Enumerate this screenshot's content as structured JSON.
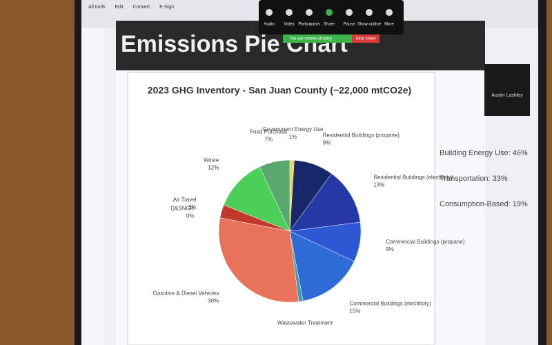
{
  "app": {
    "tabs": [
      "All tools",
      "Edit",
      "Convert",
      "E-Sign"
    ],
    "meeting_controls": [
      "Audio",
      "Video",
      "Participants",
      "Share",
      "Pause",
      "Show outline",
      "More"
    ],
    "sharing_notice": "You are screen sharing",
    "stop_share": "Stop share",
    "participant": "Austin Lashley"
  },
  "slide": {
    "title": "Emissions Pie Chart",
    "summary": [
      "Building Energy Use: 46%",
      "Transportation: 33%",
      "Consumption-Based: 19%"
    ]
  },
  "chart_data": {
    "type": "pie",
    "title": "2023 GHG Inventory - San Juan County (~22,000 mtCO2e)",
    "categories": [
      "Government Energy Use",
      "Residential Buildings (propane)",
      "Residential Buildings (electricity)",
      "Commercial Buildings (propane)",
      "Commercial Buildings (electricity)",
      "Wastewater Treatment",
      "Gasoline & Diesel Vehicles",
      "D&SNGR",
      "Air Travel",
      "Waste",
      "Food Purchase"
    ],
    "values": [
      1,
      9,
      13,
      9,
      15,
      1,
      30,
      0,
      3,
      12,
      7
    ],
    "value_labels": [
      "1%",
      "9%",
      "13%",
      "9%",
      "15%",
      null,
      "30%",
      "0%",
      "3%",
      "12%",
      "7%"
    ],
    "colors": [
      "#e6d35a",
      "#17276a",
      "#2538a6",
      "#2c58d4",
      "#2f6bd6",
      "#3aa0c0",
      "#e8735a",
      "#5a2a2a",
      "#c0392b",
      "#4ccf58",
      "#5aa870"
    ]
  }
}
